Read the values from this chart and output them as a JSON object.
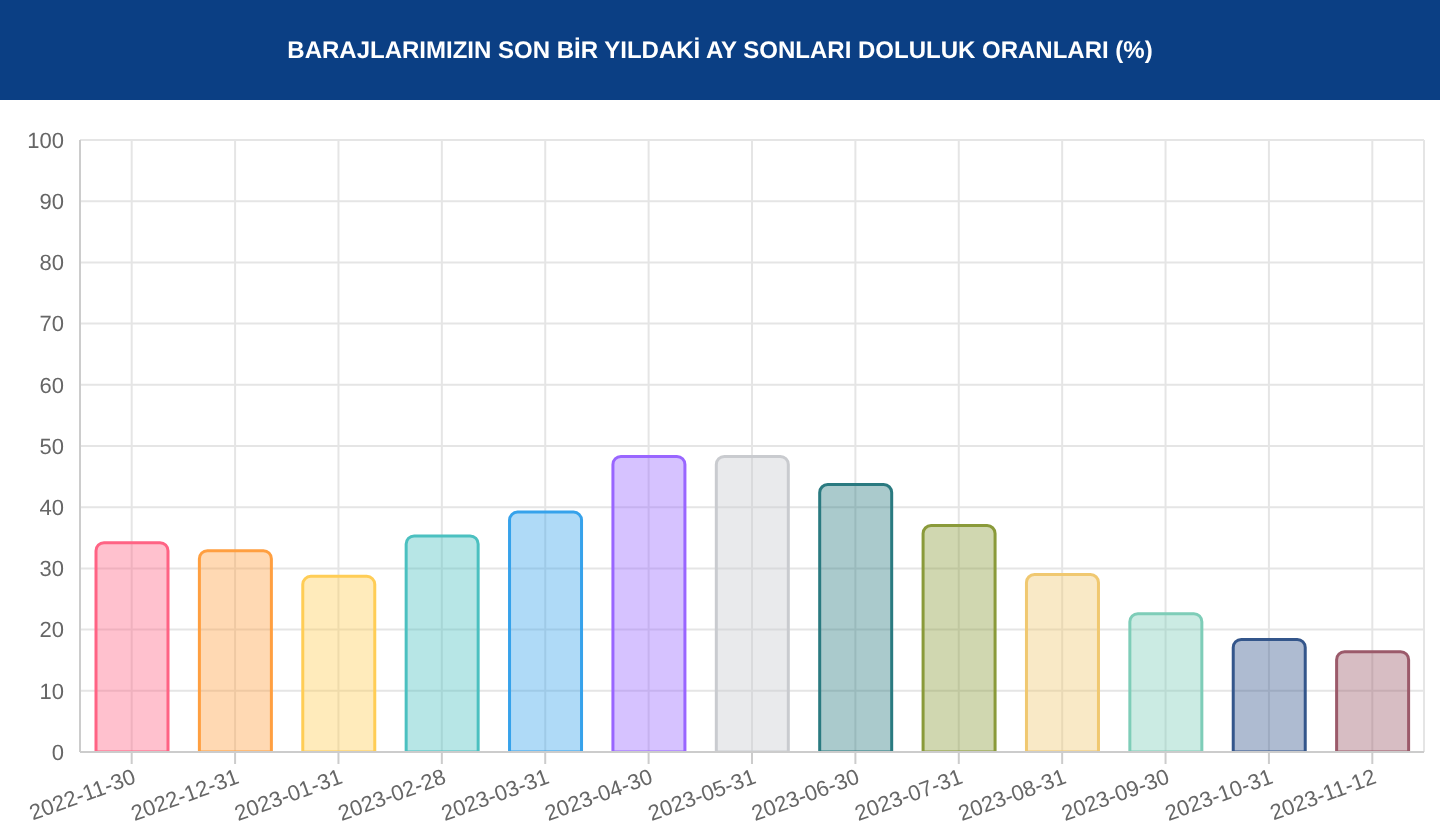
{
  "chart_data": {
    "type": "bar",
    "title": "BARAJLARIMIZIN SON BİR YILDAKİ AY SONLARI DOLULUK ORANLARI (%)",
    "categories": [
      "2022-11-30",
      "2022-12-31",
      "2023-01-31",
      "2023-02-28",
      "2023-03-31",
      "2023-04-30",
      "2023-05-31",
      "2023-06-30",
      "2023-07-31",
      "2023-08-31",
      "2023-09-30",
      "2023-10-31",
      "2023-11-12"
    ],
    "values": [
      34.2,
      32.9,
      28.7,
      35.3,
      39.2,
      48.3,
      48.3,
      43.7,
      37.0,
      29.0,
      22.6,
      18.4,
      16.4
    ],
    "colors": [
      "#ff6384",
      "#ff9f40",
      "#ffcd56",
      "#4bc0c0",
      "#36a2eb",
      "#9966ff",
      "#c9cbcf",
      "#2a7a80",
      "#8a9a3a",
      "#f0c870",
      "#7ecdb8",
      "#34568b",
      "#9b5a6a"
    ],
    "ylim": [
      0,
      100
    ],
    "yticks": [
      0,
      10,
      20,
      30,
      40,
      50,
      60,
      70,
      80,
      90,
      100
    ],
    "grid": true
  }
}
